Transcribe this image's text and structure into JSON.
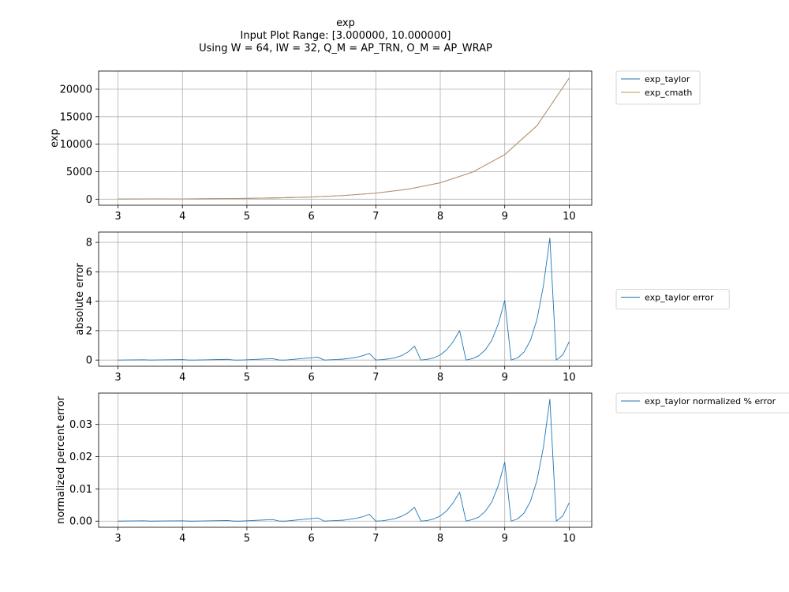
{
  "chart_data": {
    "type": "line",
    "title_lines": [
      "exp",
      "Input Plot Range: [3.000000, 10.000000]",
      "Using W = 64, IW = 32, Q_M = AP_TRN, O_M = AP_WRAP"
    ],
    "xlim": [
      2.7,
      10.35
    ],
    "xticks": [
      3,
      4,
      5,
      6,
      7,
      8,
      9,
      10
    ],
    "grid": true,
    "legend_placement": "outside-right",
    "panels": [
      {
        "ylabel": "exp",
        "ylim": [
          -1100,
          23300
        ],
        "yticks": [
          0,
          5000,
          10000,
          15000,
          20000
        ],
        "legend_position": "top",
        "series": [
          {
            "name": "exp_taylor",
            "color": "#1f77b4",
            "x": [
              3,
              3.5,
              4,
              4.5,
              5,
              5.5,
              6,
              6.5,
              7,
              7.5,
              8,
              8.5,
              9,
              9.5,
              10
            ],
            "y": [
              20.1,
              33.1,
              54.6,
              90.0,
              148.4,
              244.7,
              403.4,
              665.1,
              1096.6,
              1808.0,
              2981.0,
              4914.8,
              8103.1,
              13359.7,
              22026.5
            ]
          },
          {
            "name": "exp_cmath",
            "color": "#c8915a",
            "x": [
              3,
              3.5,
              4,
              4.5,
              5,
              5.5,
              6,
              6.5,
              7,
              7.5,
              8,
              8.5,
              9,
              9.5,
              10
            ],
            "y": [
              20.1,
              33.1,
              54.6,
              90.0,
              148.4,
              244.7,
              403.4,
              665.1,
              1096.6,
              1808.0,
              2981.0,
              4914.8,
              8103.1,
              13359.7,
              22026.5
            ]
          }
        ]
      },
      {
        "ylabel": "absolute error",
        "ylim": [
          -0.42,
          8.7
        ],
        "yticks": [
          0,
          2,
          4,
          6,
          8
        ],
        "legend_position": "middle",
        "series": [
          {
            "name": "exp_taylor error",
            "color": "#1f77b4",
            "x": [
              3.0,
              3.4,
              3.5,
              4.0,
              4.1,
              4.2,
              4.7,
              4.8,
              4.9,
              5.4,
              5.5,
              5.6,
              6.1,
              6.2,
              6.3,
              6.4,
              6.5,
              6.6,
              6.7,
              6.8,
              6.9,
              7.0,
              7.1,
              7.2,
              7.3,
              7.4,
              7.5,
              7.6,
              7.7,
              7.8,
              7.9,
              8.0,
              8.1,
              8.2,
              8.3,
              8.4,
              8.5,
              8.6,
              8.7,
              8.8,
              8.9,
              9.0,
              9.1,
              9.2,
              9.3,
              9.4,
              9.5,
              9.6,
              9.7,
              9.8,
              9.9,
              10.0
            ],
            "y": [
              0.0,
              0.02,
              0.0,
              0.03,
              0.0,
              0.0,
              0.05,
              0.0,
              0.0,
              0.1,
              0.0,
              0.0,
              0.2,
              0.0,
              0.02,
              0.04,
              0.07,
              0.12,
              0.19,
              0.3,
              0.45,
              0.0,
              0.03,
              0.08,
              0.16,
              0.3,
              0.55,
              0.95,
              0.0,
              0.05,
              0.15,
              0.35,
              0.7,
              1.25,
              2.0,
              0.0,
              0.1,
              0.3,
              0.7,
              1.35,
              2.45,
              4.05,
              0.0,
              0.15,
              0.55,
              1.35,
              2.75,
              5.05,
              8.3,
              0.0,
              0.35,
              1.25
            ]
          }
        ]
      },
      {
        "ylabel": "normalized percent error",
        "ylim": [
          -0.0019,
          0.0397
        ],
        "yticks": [
          0.0,
          0.01,
          0.02,
          0.03
        ],
        "ytick_labels": [
          "0.00",
          "0.01",
          "0.02",
          "0.03"
        ],
        "legend_position": "top",
        "series": [
          {
            "name": "exp_taylor normalized % error",
            "color": "#1f77b4",
            "x": [
              3.0,
              3.4,
              3.5,
              4.0,
              4.1,
              4.2,
              4.7,
              4.8,
              4.9,
              5.4,
              5.5,
              5.6,
              6.1,
              6.2,
              6.3,
              6.4,
              6.5,
              6.6,
              6.7,
              6.8,
              6.9,
              7.0,
              7.1,
              7.2,
              7.3,
              7.4,
              7.5,
              7.6,
              7.7,
              7.8,
              7.9,
              8.0,
              8.1,
              8.2,
              8.3,
              8.4,
              8.5,
              8.6,
              8.7,
              8.8,
              8.9,
              9.0,
              9.1,
              9.2,
              9.3,
              9.4,
              9.5,
              9.6,
              9.7,
              9.8,
              9.9,
              10.0
            ],
            "y": [
              0.0,
              0.0001,
              0.0,
              0.0001,
              0.0,
              0.0,
              0.0002,
              0.0,
              0.0,
              0.0005,
              0.0,
              0.0,
              0.001,
              0.0,
              0.0001,
              0.0002,
              0.0003,
              0.0006,
              0.0009,
              0.0014,
              0.0021,
              0.0,
              0.0001,
              0.0004,
              0.0008,
              0.0015,
              0.0026,
              0.0043,
              0.0,
              0.0002,
              0.0007,
              0.0016,
              0.0032,
              0.0057,
              0.009,
              0.0,
              0.0005,
              0.0013,
              0.0031,
              0.006,
              0.011,
              0.0183,
              0.0,
              0.0007,
              0.0025,
              0.0062,
              0.0126,
              0.0229,
              0.0378,
              0.0,
              0.0016,
              0.0057
            ]
          }
        ]
      }
    ]
  }
}
